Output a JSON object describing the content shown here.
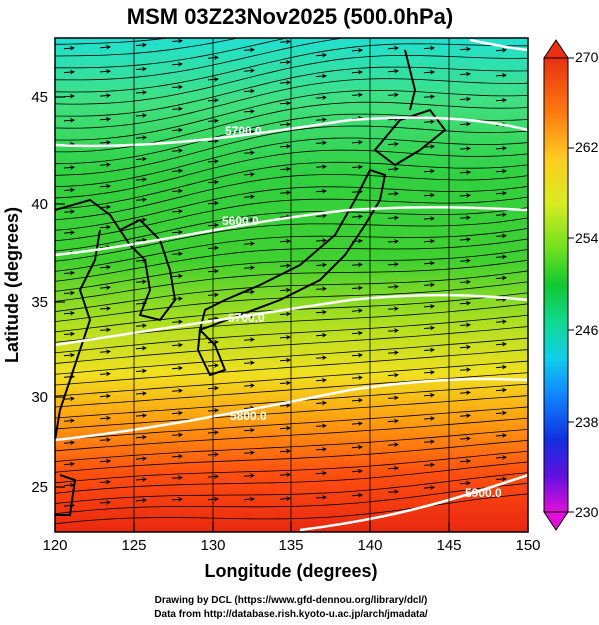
{
  "title": "MSM 03Z23Nov2025 (500.0hPa)",
  "xlabel": "Longitude (degrees)",
  "ylabel": "Latitude  (degrees)",
  "x_ticks": [
    "120",
    "125",
    "130",
    "135",
    "140",
    "145",
    "150"
  ],
  "y_ticks": [
    "25",
    "30",
    "35",
    "40",
    "45"
  ],
  "colorbar": {
    "ticks": [
      "270",
      "262",
      "254",
      "246",
      "238",
      "230"
    ],
    "min": 230,
    "max": 270
  },
  "contour_labels": [
    "5700.0",
    "5600.0",
    "5700.0",
    "5800.0",
    "5900.0"
  ],
  "credits": {
    "line1": "Drawing by DCL (https://www.gfd-dennou.org/library/dcl/)",
    "line2": "Data from http://database.rish.kyoto-u.ac.jp/arch/jmadata/"
  },
  "map": {
    "lon_range": [
      120,
      150
    ],
    "lat_range": [
      22.5,
      47.5
    ],
    "gridlines": true
  },
  "colors": {
    "cold": "#ff00ff",
    "mid": "#00c800",
    "warm": "#ff3000"
  }
}
